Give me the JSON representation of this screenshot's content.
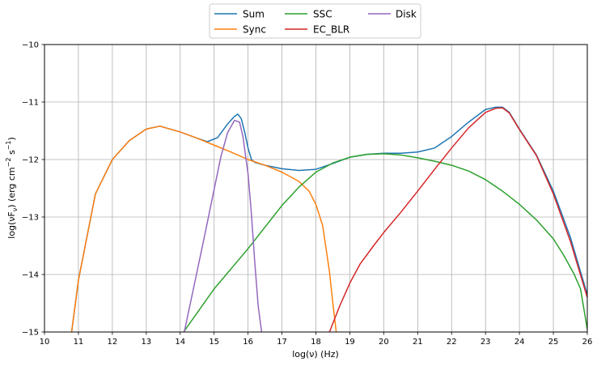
{
  "chart_data": {
    "type": "line",
    "title": "",
    "xlabel": "log(ν)  (Hz)",
    "ylabel_parts": {
      "pre": "log(νF",
      "sub": "ν",
      "mid": ")  (erg cm",
      "sup1": "−2",
      "mid2": "  s",
      "sup2": "−1",
      "post": ")"
    },
    "xlim": [
      10,
      26
    ],
    "ylim": [
      -15,
      -10
    ],
    "xticks": [
      "10",
      "11",
      "12",
      "13",
      "14",
      "15",
      "16",
      "17",
      "18",
      "19",
      "20",
      "21",
      "22",
      "23",
      "24",
      "25",
      "26"
    ],
    "yticks": [
      "−15",
      "−14",
      "−13",
      "−12",
      "−11",
      "−10"
    ],
    "grid": true,
    "legend_position": "top-center, outside",
    "series": [
      {
        "name": "Sum",
        "color": "#1f77b4",
        "x": [
          10.8,
          11,
          11.5,
          12,
          12.5,
          13,
          13.4,
          14,
          14.5,
          14.8,
          15.1,
          15.4,
          15.6,
          15.7,
          15.8,
          15.9,
          16,
          16.1,
          16.2,
          16.5,
          17,
          17.5,
          18,
          18.5,
          19,
          19.5,
          20,
          20.5,
          21,
          21.5,
          22,
          22.5,
          23,
          23.3,
          23.5,
          23.7,
          24,
          24.5,
          25,
          25.5,
          26
        ],
        "y": [
          -15,
          -14.1,
          -12.6,
          -12.0,
          -11.67,
          -11.47,
          -11.42,
          -11.52,
          -11.63,
          -11.69,
          -11.62,
          -11.38,
          -11.25,
          -11.21,
          -11.29,
          -11.52,
          -11.8,
          -12.0,
          -12.05,
          -12.1,
          -12.16,
          -12.19,
          -12.17,
          -12.07,
          -11.96,
          -11.91,
          -11.89,
          -11.89,
          -11.87,
          -11.8,
          -11.6,
          -11.35,
          -11.13,
          -11.09,
          -11.09,
          -11.18,
          -11.47,
          -11.92,
          -12.55,
          -13.35,
          -14.35
        ]
      },
      {
        "name": "Sync",
        "color": "#ff7f0e",
        "x": [
          10.8,
          11,
          11.5,
          12,
          12.5,
          13,
          13.4,
          14,
          14.5,
          15,
          15.5,
          16,
          16.5,
          17,
          17.5,
          17.8,
          18,
          18.2,
          18.4,
          18.5,
          18.6
        ],
        "y": [
          -15,
          -14.1,
          -12.6,
          -12.0,
          -11.67,
          -11.47,
          -11.42,
          -11.52,
          -11.63,
          -11.75,
          -11.87,
          -12.0,
          -12.1,
          -12.22,
          -12.38,
          -12.55,
          -12.78,
          -13.15,
          -13.95,
          -14.5,
          -15
        ]
      },
      {
        "name": "SSC",
        "color": "#2ca02c",
        "x": [
          14.1,
          15,
          16,
          17,
          17.5,
          18,
          18.5,
          19,
          19.5,
          20,
          20.5,
          21,
          21.5,
          22,
          22.5,
          23,
          23.5,
          24,
          24.5,
          25,
          25.3,
          25.6,
          25.8,
          26
        ],
        "y": [
          -15,
          -14.25,
          -13.55,
          -12.8,
          -12.48,
          -12.22,
          -12.06,
          -11.96,
          -11.91,
          -11.9,
          -11.92,
          -11.97,
          -12.03,
          -12.1,
          -12.2,
          -12.35,
          -12.55,
          -12.78,
          -13.05,
          -13.38,
          -13.66,
          -13.98,
          -14.25,
          -14.95
        ]
      },
      {
        "name": "EC_BLR",
        "color": "#d62728",
        "x": [
          18.4,
          18.7,
          19,
          19.3,
          19.7,
          20,
          20.5,
          21,
          21.5,
          22,
          22.5,
          23,
          23.3,
          23.5,
          23.7,
          24,
          24.5,
          25,
          25.5,
          26
        ],
        "y": [
          -15,
          -14.55,
          -14.15,
          -13.82,
          -13.5,
          -13.27,
          -12.92,
          -12.55,
          -12.17,
          -11.8,
          -11.45,
          -11.18,
          -11.11,
          -11.1,
          -11.19,
          -11.48,
          -11.93,
          -12.6,
          -13.42,
          -14.4
        ]
      },
      {
        "name": "Disk",
        "color": "#9467bd",
        "x": [
          14.12,
          14.4,
          14.7,
          15.0,
          15.2,
          15.4,
          15.6,
          15.75,
          15.85,
          16.0,
          16.1,
          16.2,
          16.3,
          16.4
        ],
        "y": [
          -15,
          -14.22,
          -13.38,
          -12.52,
          -11.95,
          -11.53,
          -11.32,
          -11.35,
          -11.6,
          -12.25,
          -12.95,
          -13.8,
          -14.55,
          -15
        ]
      }
    ]
  }
}
